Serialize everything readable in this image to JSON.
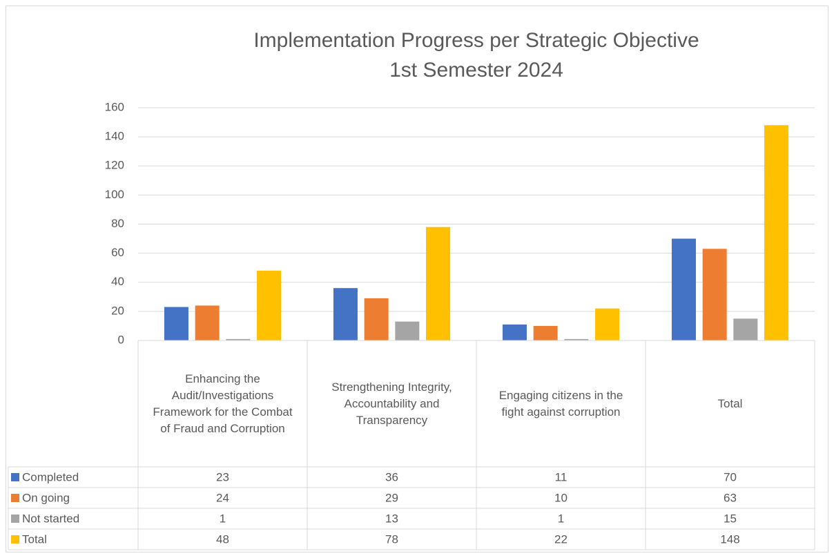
{
  "chart_data": {
    "type": "bar",
    "title": "Implementation Progress per Strategic Objective",
    "subtitle": "1st Semester 2024",
    "categories": [
      "Enhancing the Audit/Investigations Framework for the Combat of Fraud and Corruption",
      "Strengthening Integrity, Accountability and Transparency",
      "Engaging citizens in the fight against corruption",
      "Total"
    ],
    "series": [
      {
        "name": "Completed",
        "color": "#4472c4",
        "values": [
          23,
          36,
          11,
          70
        ]
      },
      {
        "name": "On going",
        "color": "#ed7d31",
        "values": [
          24,
          29,
          10,
          63
        ]
      },
      {
        "name": "Not started",
        "color": "#a5a5a5",
        "values": [
          1,
          13,
          1,
          15
        ]
      },
      {
        "name": "Total",
        "color": "#ffc000",
        "values": [
          48,
          78,
          22,
          148
        ]
      }
    ],
    "ylim": [
      0,
      160
    ],
    "yticks": [
      0,
      20,
      40,
      60,
      80,
      100,
      120,
      140,
      160
    ],
    "grid": true
  }
}
